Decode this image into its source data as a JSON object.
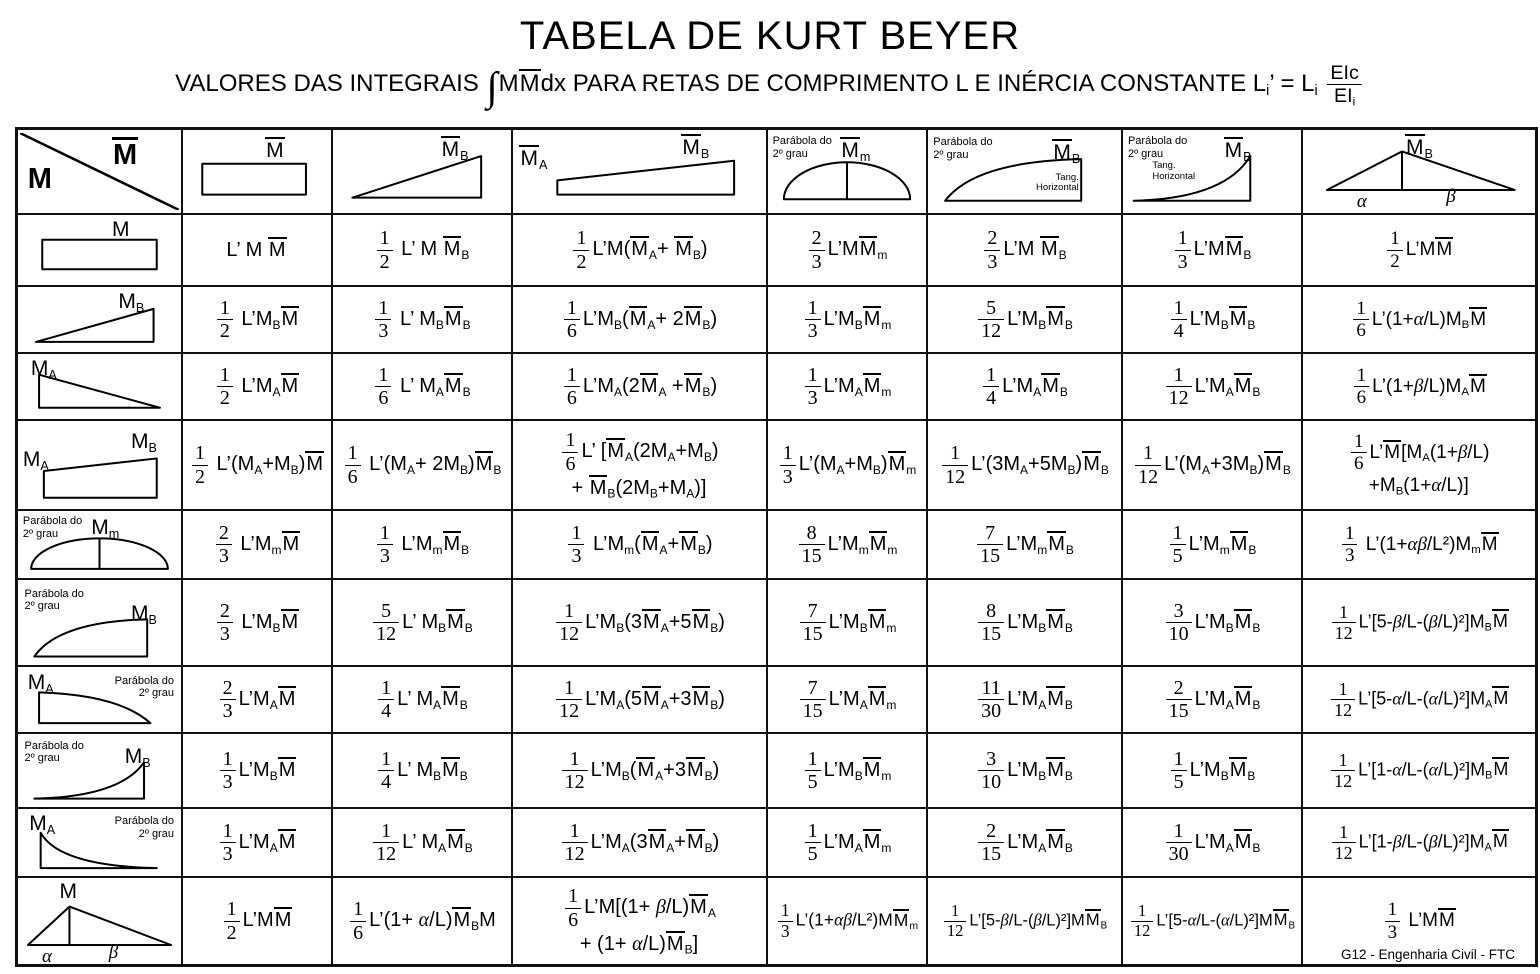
{
  "page": {
    "title": "TABELA DE KURT BEYER",
    "subtitle": "VALORES DAS INTEGRAIS ∫M{M}dx PARA RETAS DE COMPRIMENTO L E INÉRCIA CONSTANTE L_i’ = L_i #(EIc|EI_i)",
    "footer": "G12 - Engenharia Civil - FTC"
  },
  "table": {
    "corner": {
      "top_label": "{M}",
      "side_label": "M"
    },
    "columns": [
      {
        "id": "c1",
        "shape": "rect",
        "label": "{M}"
      },
      {
        "id": "c2",
        "shape": "tri-rise",
        "label": "{M}_B"
      },
      {
        "id": "c3",
        "shape": "trap",
        "label_a": "{M}_A",
        "label_b": "{M}_B"
      },
      {
        "id": "c4",
        "shape": "dome",
        "note": "Parábola do\n2º grau",
        "label": "{M}_m"
      },
      {
        "id": "c5",
        "shape": "parab-concave",
        "note": "Parábola do\n2º grau",
        "tang": "Tang.\nHorizontal",
        "label": "{M}_B"
      },
      {
        "id": "c6",
        "shape": "parab-convex",
        "note": "Parábola do\n2º grau",
        "tang": "Tang.\nHorizontal",
        "label": "{M}_B"
      },
      {
        "id": "c7",
        "shape": "tri-peak",
        "label": "{M}_B",
        "alpha": "α",
        "beta": "β"
      }
    ],
    "rows": [
      {
        "id": "r1",
        "shape": "rect",
        "label": "M",
        "formulas": [
          "L’ M {M}",
          "#(1|2) L’ M {M}_B",
          "#(1|2)L’M({M}_A+ {M}_B)",
          "#(2|3)L’M{M}_m",
          "#(2|3)L’M {M}_B",
          "#(1|3)L’M{M}_B",
          "#(1|2)L’M{M}"
        ]
      },
      {
        "id": "r2",
        "shape": "tri-rise",
        "label": "M_B",
        "formulas": [
          "#(1|2) L’M_B{M}",
          "#(1|3) L’ M_B{M}_B",
          "#(1|6)L’M_B({M}_A+ 2{M}_B)",
          "#(1|3)L’M_B{M}_m",
          "#(5|12)L’M_B{M}_B",
          "#(1|4)L’M_B{M}_B",
          "#(1|6)L’(1+α/L)M_B{M}"
        ]
      },
      {
        "id": "r3",
        "shape": "tri-fall",
        "label": "M_A",
        "formulas": [
          "#(1|2) L’M_A{M}",
          "#(1|6) L’ M_A{M}_B",
          "#(1|6)L’M_A(2{M}_A +{M}_B)",
          "#(1|3)L’M_A{M}_m",
          "#(1|4)L’M_A{M}_B",
          "#(1|12)L’M_A{M}_B",
          "#(1|6)L’(1+β/L)M_A{M}"
        ]
      },
      {
        "id": "r4",
        "shape": "trap",
        "label_a": "M_A",
        "label_b": "M_B",
        "formulas": [
          "#(1|2) L’(M_A+M_B){M}",
          "#(1|6) L’(M_A+ 2M_B){M}_B",
          "#(1|6)L’ [{M}_A(2M_A+M_B)\n+ {M}_B(2M_B+M_A)]",
          "#(1|3)L’(M_A+M_B){M}_m",
          "#(1|12)L’(3M_A+5M_B){M}_B",
          "#(1|12)L’(M_A+3M_B){M}_B",
          "#(1|6)L’{M}[M_A(1+β/L)\n+M_B(1+α/L)]"
        ]
      },
      {
        "id": "r5",
        "shape": "dome",
        "note": "Parábola do\n2º grau",
        "label": "M_m",
        "formulas": [
          "#(2|3) L’M_m{M}",
          "#(1|3) L’M_m{M}_B",
          "#(1|3) L’M_m({M}_A+{M}_B)",
          "#(8|15)L’M_m{M}_m",
          "#(7|15)L’M_m{M}_B",
          "#(1|5)L’M_m{M}_B",
          "#(1|3) L’(1+αβ/L²)M_m{M}"
        ]
      },
      {
        "id": "r6",
        "shape": "parab-concave",
        "note": "Parábola do\n2º grau",
        "label": "M_B",
        "formulas": [
          "#(2|3) L’M_B{M}",
          "#(5|12)L’ M_B{M}_B",
          "#(1|12)L’M_B(3{M}_A+5{M}_B)",
          "#(7|15)L’M_B{M}_m",
          "#(8|15)L’M_B{M}_B",
          "#(3|10)L’M_B{M}_B",
          "#(1|12)L’[5-β/L-(β/L)²]M_B{M}"
        ]
      },
      {
        "id": "r7",
        "shape": "parab-plateau",
        "note": "Parábola do\n2º grau",
        "label": "M_A",
        "formulas": [
          "#(2|3)L’M_A{M}",
          "#(1|4)L’ M_A{M}_B",
          "#(1|12)L’M_A(5{M}_A+3{M}_B)",
          "#(7|15)L’M_A{M}_m",
          "#(11|30)L’M_A{M}_B",
          "#(2|15)L’M_A{M}_B",
          "#(1|12)L’[5-α/L-(α/L)²]M_A{M}"
        ]
      },
      {
        "id": "r8",
        "shape": "parab-convex",
        "note": "Parábola do\n2º grau",
        "label": "M_B",
        "formulas": [
          "#(1|3)L’M_B{M}",
          "#(1|4)L’ M_B{M}_B",
          "#(1|12)L’M_B({M}_A+3{M}_B)",
          "#(1|5)L’M_B{M}_m",
          "#(3|10)L’M_B{M}_B",
          "#(1|5)L’M_B{M}_B",
          "#(1|12)L’[1-α/L-(α/L)²]M_B{M}"
        ]
      },
      {
        "id": "r9",
        "shape": "parab-decay",
        "note": "Parábola do\n2º grau",
        "label": "M_A",
        "formulas": [
          "#(1|3)L’M_A{M}",
          "#(1|12)L’ M_A{M}_B",
          "#(1|12)L’M_A(3{M}_A+{M}_B)",
          "#(1|5)L’M_A{M}_m",
          "#(2|15)L’M_A{M}_B",
          "#(1|30)L’M_A{M}_B",
          "#(1|12)L’[1-β/L-(β/L)²]M_A{M}"
        ]
      },
      {
        "id": "r10",
        "shape": "tri-peak",
        "label": "M",
        "alpha": "α",
        "beta": "β",
        "formulas": [
          "#(1|2)L’M{M}",
          "#(1|6)L’(1+ α/L){M}_BM",
          "#(1|6)L’M[(1+ β/L){M}_A\n+ (1+ α/L){M}_B]",
          "#(1|3)L’(1+αβ/L²)M{M}_m",
          "#(1|12)L’[5-β/L-(β/L)²]M{M}_B",
          "#(1|12)L’[5-α/L-(α/L)²]M{M}_B",
          "#(1|3) L’M{M}"
        ]
      }
    ]
  }
}
